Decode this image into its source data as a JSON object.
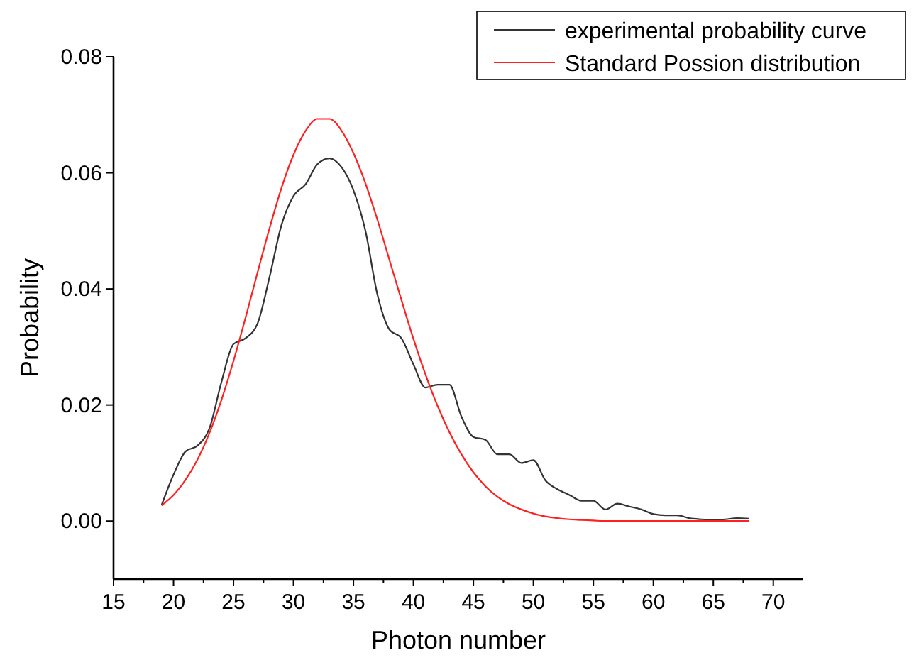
{
  "chart_data": {
    "type": "line",
    "xlabel": "Photon number",
    "ylabel": "Probability",
    "xlim": [
      15,
      72.5
    ],
    "ylim": [
      -0.01,
      0.08
    ],
    "xticks": [
      15,
      {
        "value": 17.5,
        "label": null
      },
      20,
      {
        "value": 22.5,
        "label": null
      },
      25,
      {
        "value": 27.5,
        "label": null
      },
      30,
      {
        "value": 32.5,
        "label": null
      },
      35,
      {
        "value": 37.5,
        "label": null
      },
      40,
      {
        "value": 42.5,
        "label": null
      },
      45,
      {
        "value": 47.5,
        "label": null
      },
      50,
      {
        "value": 52.5,
        "label": null
      },
      55,
      {
        "value": 57.5,
        "label": null
      },
      60,
      {
        "value": 62.5,
        "label": null
      },
      65,
      {
        "value": 67.5,
        "label": null
      },
      70
    ],
    "yticks": [
      {
        "value": 0,
        "label": "0.00"
      },
      {
        "value": 0.02,
        "label": "0.02"
      },
      {
        "value": 0.04,
        "label": "0.04"
      },
      {
        "value": 0.06,
        "label": "0.06"
      },
      {
        "value": 0.08,
        "label": "0.08"
      }
    ],
    "x": [
      19,
      20,
      21,
      22,
      23,
      24,
      25,
      26,
      27,
      28,
      29,
      30,
      31,
      32,
      33,
      34,
      35,
      36,
      37,
      38,
      39,
      40,
      41,
      42,
      43,
      44,
      45,
      46,
      47,
      48,
      49,
      50,
      51,
      52,
      53,
      54,
      55,
      56,
      57,
      58,
      59,
      60,
      61,
      62,
      63,
      64,
      65,
      66,
      67,
      68
    ],
    "legend": "top right",
    "grid": false,
    "marker": "none",
    "line_style": "solid",
    "series": [
      {
        "name": "experimental probability curve",
        "color": "#333333",
        "values": [
          0.0027,
          0.008,
          0.012,
          0.013,
          0.016,
          0.024,
          0.0305,
          0.0315,
          0.034,
          0.042,
          0.051,
          0.056,
          0.058,
          0.0615,
          0.0625,
          0.061,
          0.057,
          0.05,
          0.039,
          0.033,
          0.0315,
          0.027,
          0.023,
          0.0235,
          0.0235,
          0.018,
          0.0145,
          0.014,
          0.0115,
          0.0115,
          0.01,
          0.0105,
          0.007,
          0.0055,
          0.0045,
          0.0035,
          0.0035,
          0.002,
          0.003,
          0.0025,
          0.002,
          0.0012,
          0.001,
          0.001,
          0.0005,
          0.0003,
          0.0002,
          0.0003,
          0.0005,
          0.0004
        ]
      },
      {
        "name": "Standard Possion distribution",
        "color": "#ff2020",
        "values": [
          0.0027,
          0.0045,
          0.0071,
          0.0106,
          0.0152,
          0.0209,
          0.0276,
          0.035,
          0.0428,
          0.0504,
          0.0574,
          0.0631,
          0.0672,
          0.0693,
          0.0693,
          0.0673,
          0.0634,
          0.0582,
          0.0519,
          0.045,
          0.0381,
          0.0314,
          0.0253,
          0.0199,
          0.0153,
          0.0115,
          0.0084,
          0.006,
          0.0042,
          0.0029,
          0.002,
          0.0013,
          0.0008,
          0.0005,
          0.0003,
          0.0002,
          0.0001,
          0,
          0,
          0,
          0,
          0,
          0,
          0,
          0,
          0,
          0,
          0,
          0,
          0
        ]
      }
    ]
  }
}
